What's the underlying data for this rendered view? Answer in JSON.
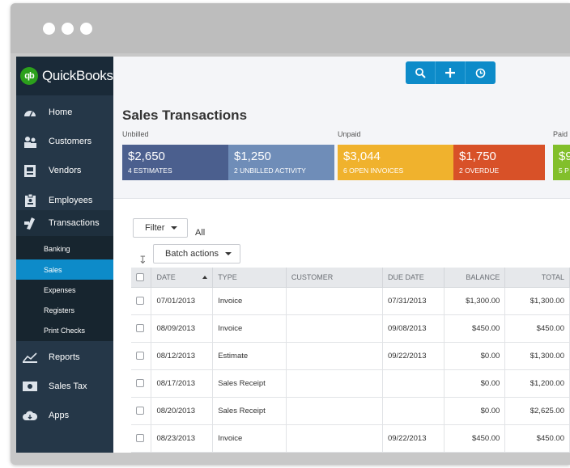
{
  "app": {
    "brand": "QuickBooks",
    "logo_mark": "qb"
  },
  "sidebar": {
    "items": [
      {
        "label": "Home",
        "icon": "gauge-icon"
      },
      {
        "label": "Customers",
        "icon": "people-icon"
      },
      {
        "label": "Vendors",
        "icon": "vendor-icon"
      },
      {
        "label": "Employees",
        "icon": "badge-icon"
      },
      {
        "label": "Transactions",
        "icon": "transactions-icon"
      },
      {
        "label": "Reports",
        "icon": "chart-icon"
      },
      {
        "label": "Sales Tax",
        "icon": "tax-icon"
      },
      {
        "label": "Apps",
        "icon": "cloud-icon"
      }
    ],
    "sub_items": [
      "Banking",
      "Sales",
      "Expenses",
      "Registers",
      "Print Checks"
    ],
    "active_sub": "Sales"
  },
  "toolbar": {
    "icons": [
      "search-icon",
      "plus-icon",
      "clock-icon"
    ]
  },
  "page": {
    "title": "Sales Transactions",
    "sections": {
      "unbilled": "Unbilled",
      "unpaid": "Unpaid",
      "paid": "Paid"
    }
  },
  "cards": [
    {
      "amount": "$2,650",
      "label": "4 ESTIMATES",
      "color": "#4b5f8e"
    },
    {
      "amount": "$1,250",
      "label": "2 UNBILLED ACTIVITY",
      "color": "#6f8db8"
    },
    {
      "amount": "$3,044",
      "label": "6 OPEN INVOICES",
      "color": "#f0b22d"
    },
    {
      "amount": "$1,750",
      "label": "2 OVERDUE",
      "color": "#d85128"
    },
    {
      "amount": "$9",
      "label": "5 P",
      "color": "#82bf2b"
    }
  ],
  "controls": {
    "filter": "Filter",
    "all": "All",
    "batch": "Batch actions"
  },
  "table": {
    "headers": [
      "DATE",
      "TYPE",
      "CUSTOMER",
      "DUE DATE",
      "BALANCE",
      "TOTAL"
    ],
    "rows": [
      {
        "date": "07/01/2013",
        "type": "Invoice",
        "customer": "",
        "due": "07/31/2013",
        "balance": "$1,300.00",
        "total": "$1,300.00"
      },
      {
        "date": "08/09/2013",
        "type": "Invoice",
        "customer": "",
        "due": "09/08/2013",
        "balance": "$450.00",
        "total": "$450.00"
      },
      {
        "date": "08/12/2013",
        "type": "Estimate",
        "customer": "",
        "due": "09/22/2013",
        "balance": "$0.00",
        "total": "$1,300.00"
      },
      {
        "date": "08/17/2013",
        "type": "Sales Receipt",
        "customer": "",
        "due": "",
        "balance": "$0.00",
        "total": "$1,200.00"
      },
      {
        "date": "08/20/2013",
        "type": "Sales Receipt",
        "customer": "",
        "due": "",
        "balance": "$0.00",
        "total": "$2,625.00"
      },
      {
        "date": "08/23/2013",
        "type": "Invoice",
        "customer": "",
        "due": "09/22/2013",
        "balance": "$450.00",
        "total": "$450.00"
      }
    ]
  }
}
